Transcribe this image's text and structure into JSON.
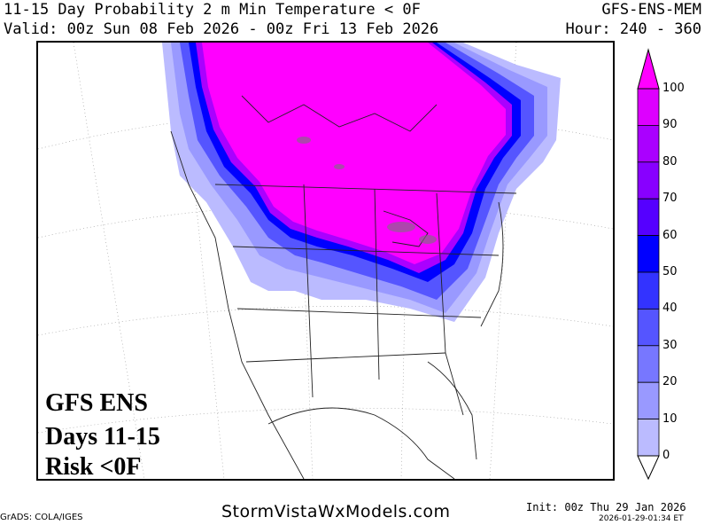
{
  "header": {
    "title": "11-15 Day Probability 2 m Min Temperature < 0F",
    "model": "GFS-ENS-MEM",
    "valid": "Valid: 00z Sun 08 Feb 2026 - 00z Fri 13 Feb 2026",
    "hour": "Hour: 240 - 360"
  },
  "map_overlay": {
    "line1": "GFS ENS",
    "line2": "Days 11-15",
    "line3": "Risk <0F"
  },
  "colorbar": {
    "labels": [
      "100",
      "90",
      "80",
      "70",
      "60",
      "50",
      "40",
      "30",
      "20",
      "10",
      "0"
    ],
    "colors": [
      "#ff00ff",
      "#dd00ff",
      "#aa00ff",
      "#8800ff",
      "#5500ff",
      "#0000ff",
      "#3333ff",
      "#5555ff",
      "#7777ff",
      "#9999ff",
      "#bbbbff"
    ]
  },
  "footer": {
    "credit": "GrADS: COLA/IGES",
    "brand": "StormVistaWxModels.com",
    "init": "Init: 00z Thu 29 Jan 2026",
    "timestamp": "2026-01-29-01:34 ET"
  }
}
